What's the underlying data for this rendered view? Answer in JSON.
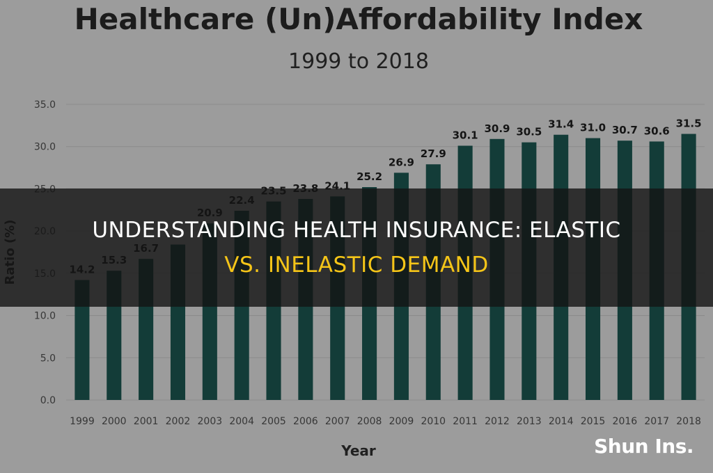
{
  "chart_data": {
    "type": "bar",
    "title": "Healthcare (Un)Affordability Index",
    "subtitle": "1999 to 2018",
    "xlabel": "Year",
    "ylabel": "Ratio (%)",
    "ylim": [
      0,
      35
    ],
    "yticks": [
      "0.0",
      "5.0",
      "10.0",
      "15.0",
      "20.0",
      "25.0",
      "30.0",
      "35.0"
    ],
    "grid": true,
    "categories": [
      "1999",
      "2000",
      "2001",
      "2002",
      "2003",
      "2004",
      "2005",
      "2006",
      "2007",
      "2008",
      "2009",
      "2010",
      "2011",
      "2012",
      "2013",
      "2014",
      "2015",
      "2016",
      "2017",
      "2018"
    ],
    "values": [
      14.2,
      15.3,
      16.7,
      18.4,
      20.9,
      22.4,
      23.5,
      23.8,
      24.1,
      25.2,
      26.9,
      27.9,
      30.1,
      30.9,
      30.5,
      31.4,
      31.0,
      30.7,
      30.6,
      31.5
    ],
    "value_labels": [
      "14.2",
      "15.3",
      "16.7",
      "",
      "20.9",
      "22.4",
      "23.5",
      "23.8",
      "24.1",
      "25.2",
      "26.9",
      "27.9",
      "30.1",
      "30.9",
      "30.5",
      "31.4",
      "31.0",
      "30.7",
      "30.6",
      "31.5"
    ],
    "bar_color": "#1f5e58"
  },
  "overlay": {
    "line1": "Understanding Health Insurance: Elastic",
    "line2": "vs. Inelastic Demand",
    "line1_color": "#ffffff",
    "line2_color": "#f5c518"
  },
  "watermark": "Shun Ins."
}
